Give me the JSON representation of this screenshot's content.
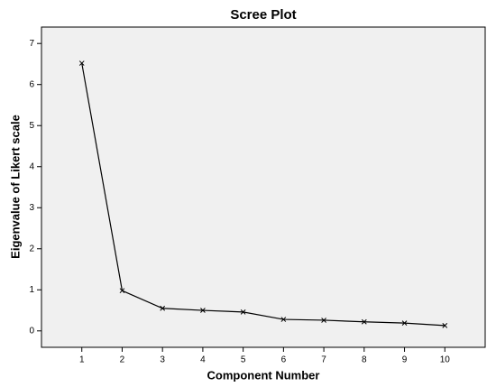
{
  "chart_data": {
    "type": "line",
    "title": "Scree Plot",
    "x_label": "Component Number",
    "y_label": "Eigenvalue of Likert scale",
    "x": [
      1,
      2,
      3,
      4,
      5,
      6,
      7,
      8,
      9,
      10
    ],
    "series": [
      {
        "color": "#000000",
        "values": [
          6.52,
          0.98,
          0.55,
          0.5,
          0.46,
          0.28,
          0.26,
          0.22,
          0.19,
          0.13
        ]
      }
    ],
    "marker": "x",
    "xlim": [
      0,
      11
    ],
    "xticks": [
      1,
      2,
      3,
      4,
      5,
      6,
      7,
      8,
      9,
      10
    ],
    "ylim": [
      -0.4,
      7.4
    ],
    "yticks": [
      0,
      1,
      2,
      3,
      4,
      5,
      6,
      7
    ],
    "grid": false,
    "background": "#f0f0f0"
  }
}
